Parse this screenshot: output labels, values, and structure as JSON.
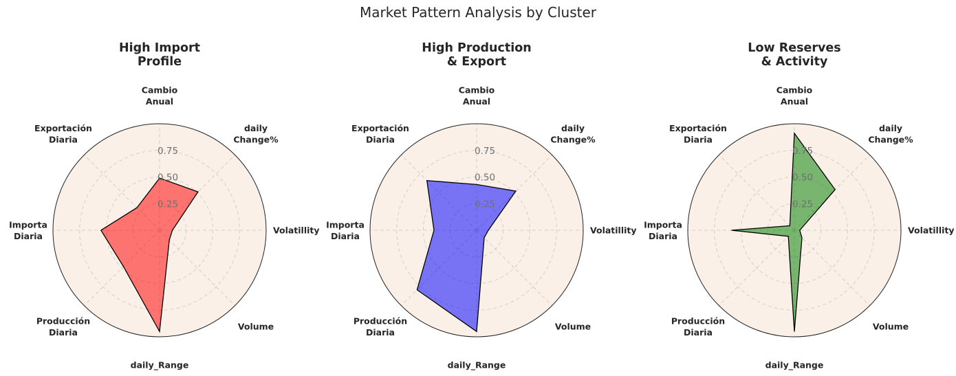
{
  "chart_data": {
    "type": "radar",
    "title": "Market Pattern Analysis by Cluster",
    "axes": [
      [
        "Cambio",
        "Anual"
      ],
      [
        "daily",
        "Change%"
      ],
      [
        "Volatillity"
      ],
      [
        "Volume"
      ],
      [
        "daily_Range"
      ],
      [
        "Producción",
        "Diaria"
      ],
      [
        "Importa",
        "Diaria"
      ],
      [
        "Exportación",
        "Diaria"
      ]
    ],
    "rlim": [
      0,
      1
    ],
    "rticks": [
      0.25,
      0.5,
      0.75
    ],
    "rtick_labels": [
      "0.25",
      "0.50",
      "0.75"
    ],
    "grid": true,
    "background": "#faf0e8",
    "panels": [
      {
        "title": [
          "High Import",
          "Profile"
        ],
        "color": "#ff0000",
        "values": [
          0.49,
          0.51,
          0.12,
          0.13,
          0.95,
          0.48,
          0.55,
          0.3
        ]
      },
      {
        "title": [
          "High Production",
          "& Export"
        ],
        "color": "#0000ff",
        "values": [
          0.43,
          0.52,
          0.11,
          0.1,
          0.95,
          0.79,
          0.4,
          0.66
        ]
      },
      {
        "title": [
          "Low Reserves",
          "& Activity"
        ],
        "color": "#008000",
        "values": [
          0.91,
          0.54,
          0.05,
          0.1,
          0.95,
          0.08,
          0.59,
          0.06
        ]
      }
    ]
  }
}
